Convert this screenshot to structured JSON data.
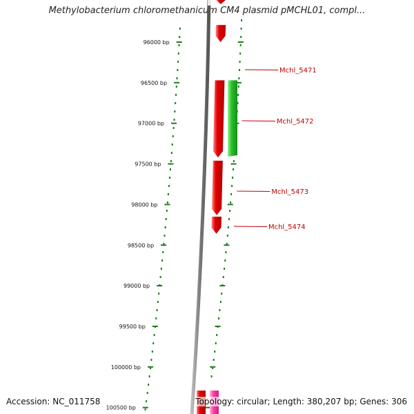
{
  "title": "Methylobacterium chloromethanicum CM4 plasmid pMCHL01, compl...",
  "footer": {
    "accession": "Accession: NC_011758",
    "topology": "Topology: circular; Length: 380,207 bp; Genes: 306"
  },
  "colors": {
    "backbone": "#7a7a7a",
    "dotted_track": "#1a7a1a",
    "forward_gene": "#e60000",
    "reverse_gene": "#22bb22",
    "label": "#c00000",
    "pink_gene": "#ff3fa6"
  },
  "ruler": {
    "ticks": [
      {
        "bp": 96000,
        "label": "96000 bp"
      },
      {
        "bp": 96500,
        "label": "96500 bp"
      },
      {
        "bp": 97000,
        "label": "97000 bp"
      },
      {
        "bp": 97500,
        "label": "97500 bp"
      },
      {
        "bp": 98000,
        "label": "98000 bp"
      },
      {
        "bp": 98500,
        "label": "98500 bp"
      },
      {
        "bp": 99000,
        "label": "99000 bp"
      },
      {
        "bp": 99500,
        "label": "99500 bp"
      },
      {
        "bp": 100000,
        "label": "100000 bp"
      },
      {
        "bp": 100500,
        "label": "100500 bp"
      }
    ]
  },
  "genes": [
    {
      "name": "Mchl_5471",
      "start": 95790,
      "end": 96000,
      "strand": "+",
      "labeled": true
    },
    {
      "name": "Mchl_5472",
      "start": 96470,
      "end": 97420,
      "strand": "+",
      "labeled": true
    },
    {
      "name": "",
      "start": 96470,
      "end": 97410,
      "strand": "-",
      "labeled": false
    },
    {
      "name": "Mchl_5473",
      "start": 97460,
      "end": 98130,
      "strand": "+",
      "labeled": true
    },
    {
      "name": "Mchl_5474",
      "start": 98150,
      "end": 98360,
      "strand": "+",
      "labeled": true
    }
  ]
}
